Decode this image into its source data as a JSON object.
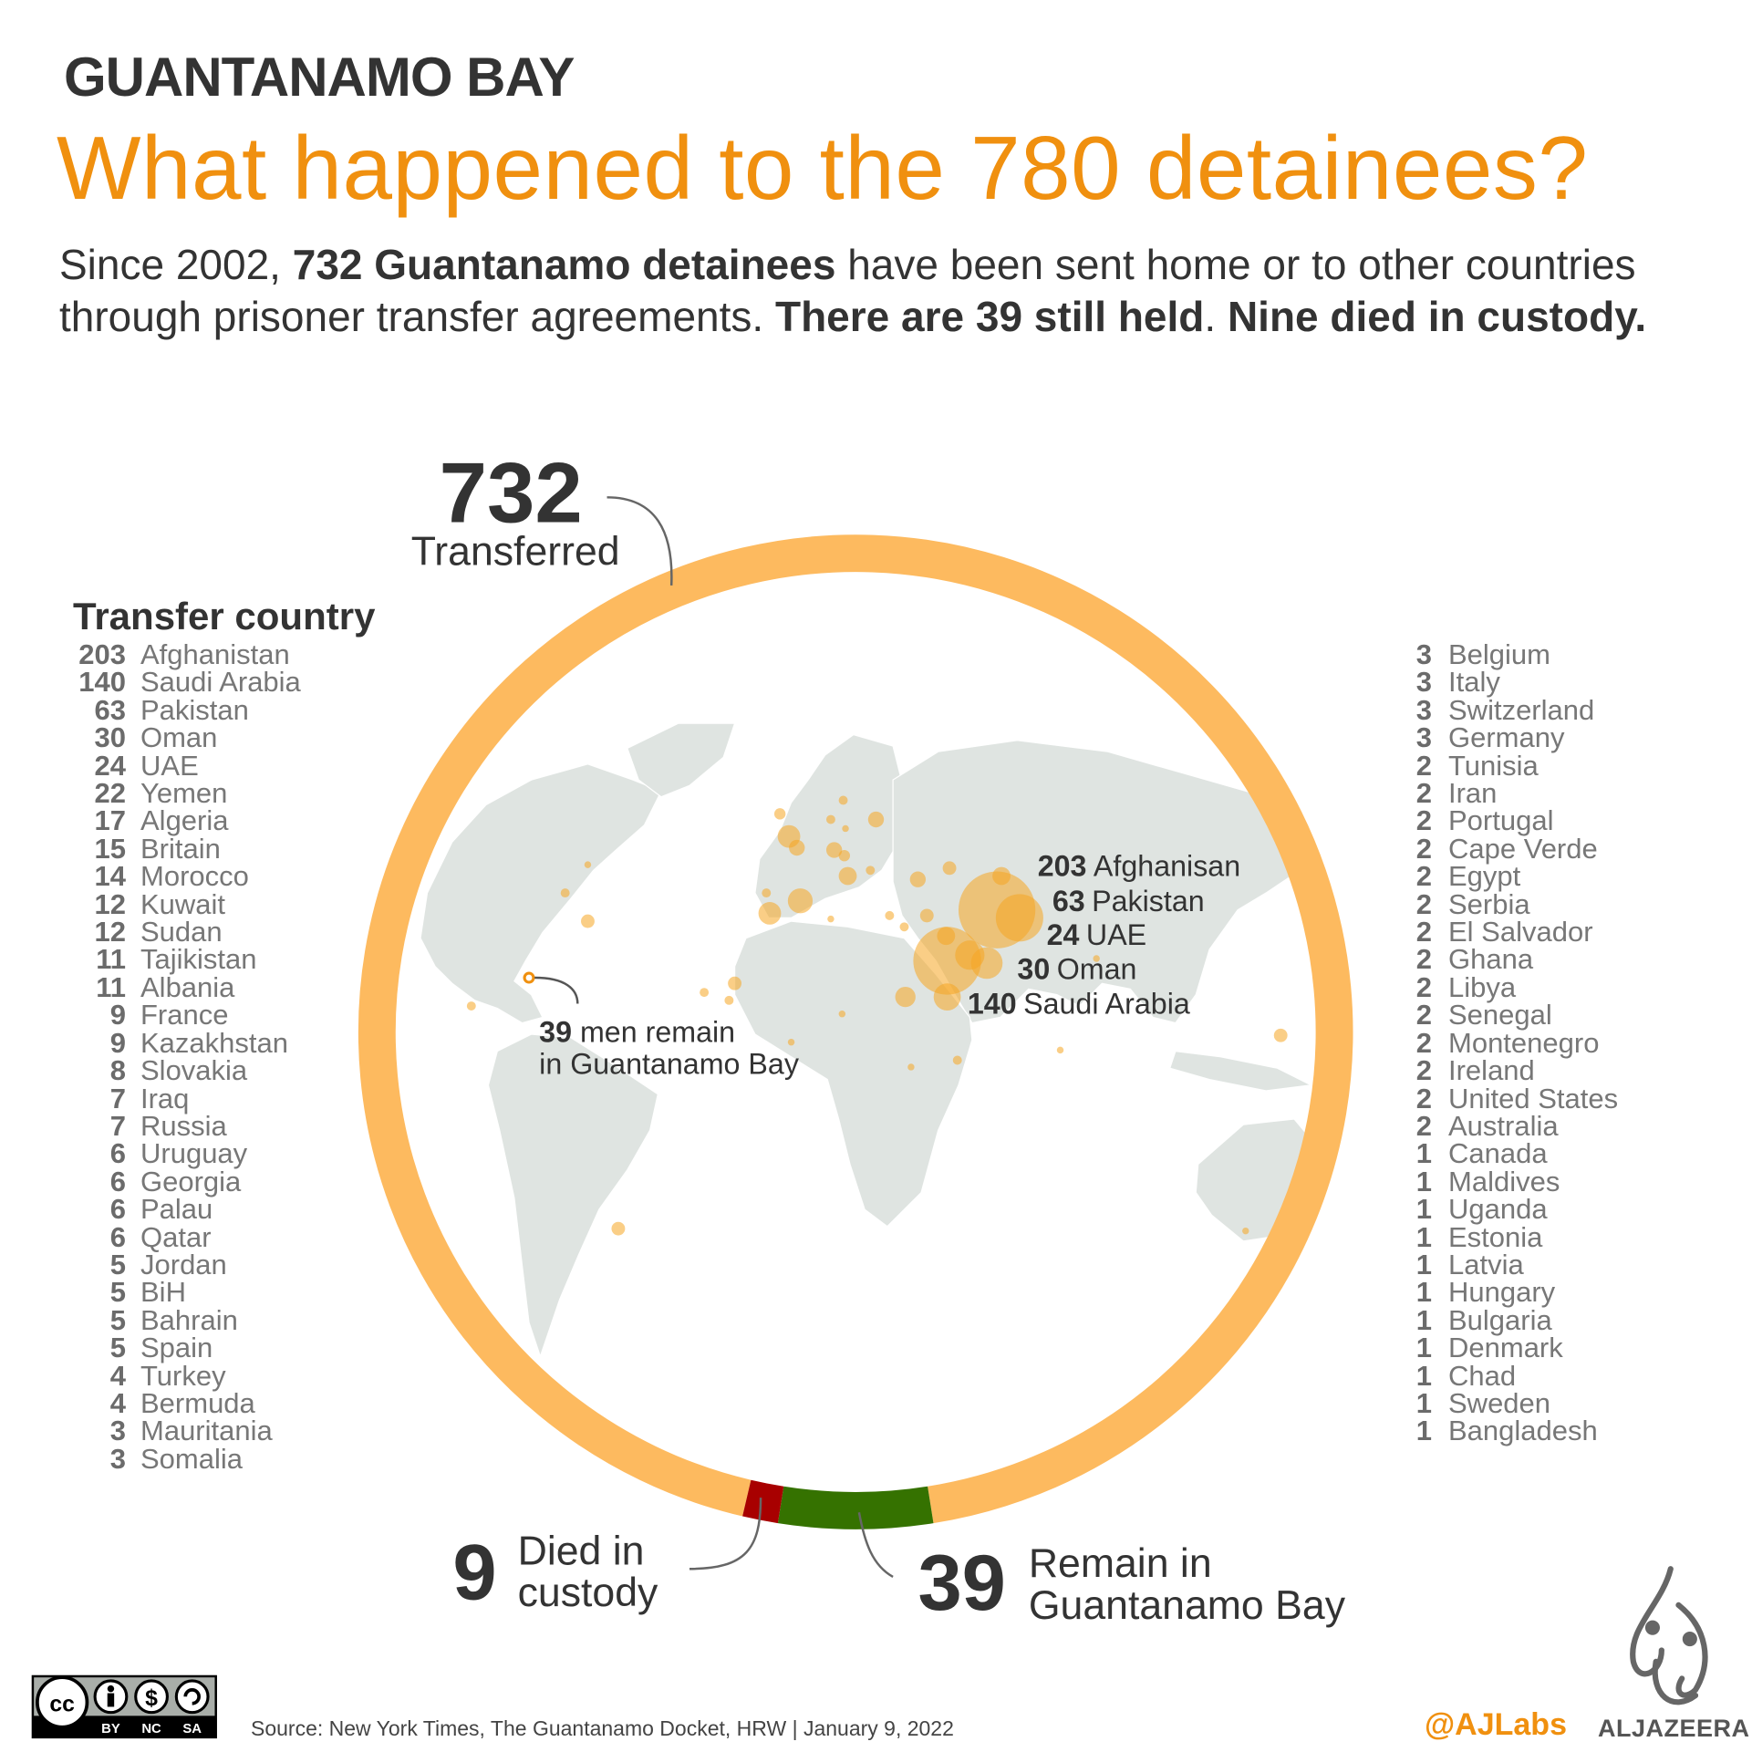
{
  "header": {
    "kicker": "GUANTANAMO BAY",
    "headline": "What happened to the 780 detainees?",
    "intro": [
      {
        "text": "Since 2002, ",
        "bold": false
      },
      {
        "text": "732 Guantanamo detainees",
        "bold": true
      },
      {
        "text": " have been sent home or to other countries through prisoner transfer agreements. ",
        "bold": false
      },
      {
        "text": "There are 39 still held",
        "bold": true
      },
      {
        "text": ". ",
        "bold": false
      },
      {
        "text": "Nine died in custody.",
        "bold": true
      }
    ]
  },
  "chart_data": {
    "type": "pie",
    "style": "ring",
    "total": 780,
    "segments": [
      {
        "name": "Transferred",
        "value": 732,
        "color": "#fdba5f"
      },
      {
        "name": "Remain in Guantanamo Bay",
        "value": 39,
        "color": "#357200"
      },
      {
        "name": "Died in custody",
        "value": 9,
        "color": "#a80000"
      }
    ],
    "labels": {
      "transferred_value": "732",
      "transferred_label": "Transferred",
      "died_value": "9",
      "died_label_1": "Died in",
      "died_label_2": "custody",
      "remain_value": "39",
      "remain_label_1": "Remain in",
      "remain_label_2": "Guantanamo Bay"
    },
    "map_callouts": [
      {
        "value": "203",
        "label": "Afghanisan"
      },
      {
        "value": "63",
        "label": "Pakistan"
      },
      {
        "value": "24",
        "label": "UAE"
      },
      {
        "value": "30",
        "label": "Oman"
      },
      {
        "value": "140",
        "label": "Saudi Arabia"
      }
    ],
    "guantanamo_callout": {
      "value": "39",
      "line1": " men remain",
      "line2": "in Guantanamo Bay"
    },
    "bubble_color": "#f5a623",
    "map_color": "#dfe4e1"
  },
  "transfer_list": {
    "header": "Transfer country",
    "left": [
      [
        "203",
        "Afghanistan"
      ],
      [
        "140",
        "Saudi Arabia"
      ],
      [
        "63",
        "Pakistan"
      ],
      [
        "30",
        "Oman"
      ],
      [
        "24",
        "UAE"
      ],
      [
        "22",
        "Yemen"
      ],
      [
        "17",
        "Algeria"
      ],
      [
        "15",
        "Britain"
      ],
      [
        "14",
        "Morocco"
      ],
      [
        "12",
        "Kuwait"
      ],
      [
        "12",
        "Sudan"
      ],
      [
        "11",
        "Tajikistan"
      ],
      [
        "11",
        "Albania"
      ],
      [
        "9",
        "France"
      ],
      [
        "9",
        "Kazakhstan"
      ],
      [
        "8",
        "Slovakia"
      ],
      [
        "7",
        "Iraq"
      ],
      [
        "7",
        "Russia"
      ],
      [
        "6",
        "Uruguay"
      ],
      [
        "6",
        "Georgia"
      ],
      [
        "6",
        "Palau"
      ],
      [
        "6",
        "Qatar"
      ],
      [
        "5",
        "Jordan"
      ],
      [
        "5",
        "BiH"
      ],
      [
        "5",
        "Bahrain"
      ],
      [
        "5",
        "Spain"
      ],
      [
        "4",
        "Turkey"
      ],
      [
        "4",
        "Bermuda"
      ],
      [
        "3",
        "Mauritania"
      ],
      [
        "3",
        "Somalia"
      ]
    ],
    "right": [
      [
        "3",
        "Belgium"
      ],
      [
        "3",
        "Italy"
      ],
      [
        "3",
        "Switzerland"
      ],
      [
        "3",
        "Germany"
      ],
      [
        "2",
        "Tunisia"
      ],
      [
        "2",
        "Iran"
      ],
      [
        "2",
        "Portugal"
      ],
      [
        "2",
        "Cape Verde"
      ],
      [
        "2",
        "Egypt"
      ],
      [
        "2",
        "Serbia"
      ],
      [
        "2",
        "El Salvador"
      ],
      [
        "2",
        "Ghana"
      ],
      [
        "2",
        "Libya"
      ],
      [
        "2",
        "Senegal"
      ],
      [
        "2",
        "Montenegro"
      ],
      [
        "2",
        "Ireland"
      ],
      [
        "2",
        "United States"
      ],
      [
        "2",
        "Australia"
      ],
      [
        "1",
        "Canada"
      ],
      [
        "1",
        "Maldives"
      ],
      [
        "1",
        "Uganda"
      ],
      [
        "1",
        "Estonia"
      ],
      [
        "1",
        "Latvia"
      ],
      [
        "1",
        "Hungary"
      ],
      [
        "1",
        "Bulgaria"
      ],
      [
        "1",
        "Denmark"
      ],
      [
        "1",
        "Chad"
      ],
      [
        "1",
        "Sweden"
      ],
      [
        "1",
        "Bangladesh"
      ]
    ]
  },
  "footer": {
    "source": "Source:  New York Times, The Guantanamo Docket, HRW |  January 9, 2022",
    "license": {
      "by": "BY",
      "nc": "NC",
      "sa": "SA",
      "cc": "cc"
    },
    "handle": "@AJLabs",
    "brand": "ALJAZEERA"
  }
}
